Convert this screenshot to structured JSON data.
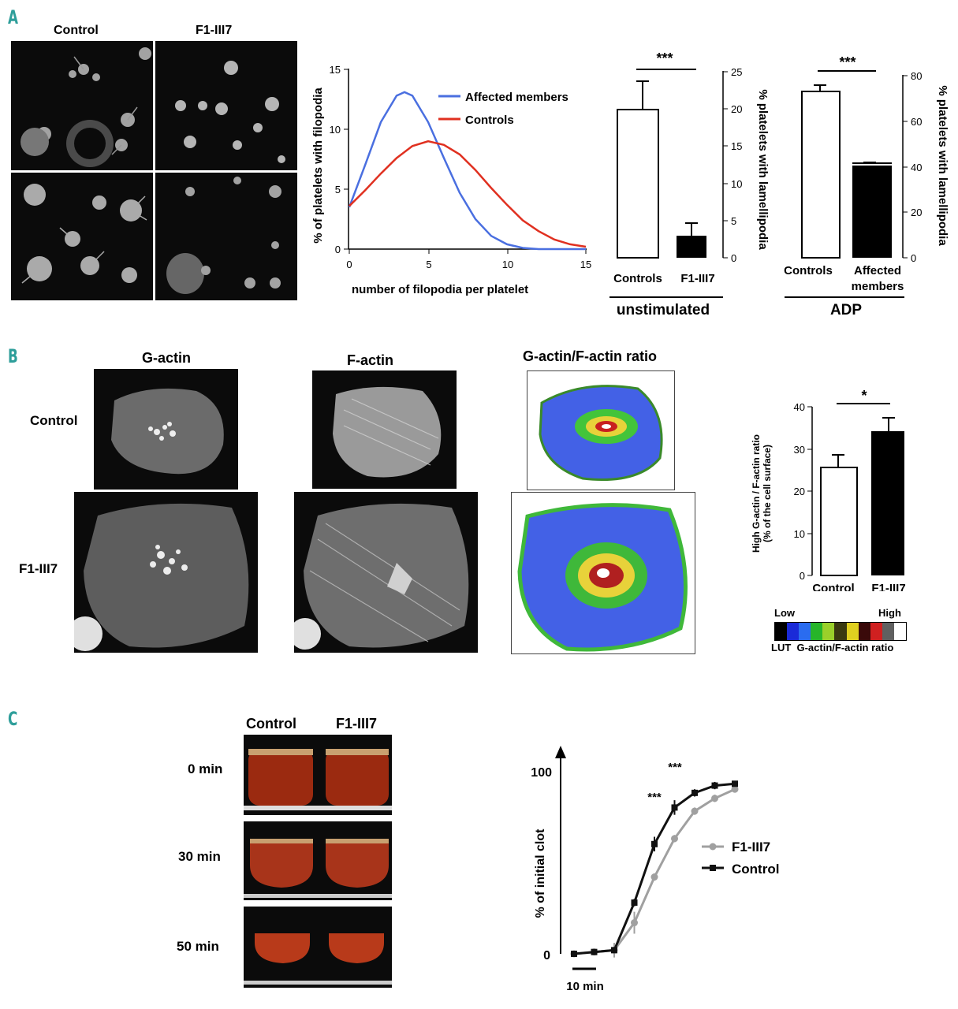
{
  "panels": {
    "a": "A",
    "b": "B",
    "c": "C"
  },
  "panelA": {
    "micro_titles": [
      "Control",
      "F1-III7"
    ],
    "filopodia_chart": {
      "ylabel": "% of platelets with filopodia",
      "xlabel": "number of filopodia per platelet",
      "yticks": [
        "15",
        "10",
        "5",
        "0"
      ],
      "xticks": [
        "0",
        "5",
        "10",
        "15"
      ],
      "legend": [
        "Affected members",
        "Controls"
      ]
    },
    "lamelli1": {
      "sig": "***",
      "ylabel": "% platelets with lamellipodia",
      "yticks": [
        "25",
        "20",
        "15",
        "10",
        "5",
        "0"
      ],
      "cat1": "Controls",
      "cat2": "F1-III7",
      "group": "unstimulated"
    },
    "lamelli2": {
      "sig": "***",
      "ylabel": "% platelets with lamellipodia",
      "yticks": [
        "80",
        "60",
        "40",
        "20",
        "0"
      ],
      "cat1": "Controls",
      "cat2a": "Affected",
      "cat2b": "members",
      "group": "ADP"
    }
  },
  "panelB": {
    "col_titles": [
      "G-actin",
      "F-actin",
      "G-actin/F-actin ratio"
    ],
    "row_labels": [
      "Control",
      "F1-III7"
    ],
    "bar": {
      "sig": "*",
      "ylabel1": "High G-actin / F-actin ratio",
      "ylabel2": "(% of the cell surface)",
      "yticks": [
        "40",
        "30",
        "20",
        "10",
        "0"
      ],
      "cat1": "Control",
      "cat2": "F1-III7"
    },
    "lut": {
      "low": "Low",
      "high": "High",
      "caption": "LUT  G-actin/F-actin ratio"
    }
  },
  "panelC": {
    "col_titles": [
      "Control",
      "F1-III7"
    ],
    "time_labels": [
      "0 min",
      "30 min",
      "50 min"
    ],
    "chart": {
      "ylabel": "% of initial clot",
      "ytop": "100",
      "ybottom": "0",
      "scale_label": "10 min",
      "sig1": "***",
      "sig2": "***",
      "legend": [
        "F1-III7",
        "Control"
      ]
    }
  },
  "chart_data": [
    {
      "type": "line",
      "title": "",
      "xlabel": "number of filopodia per platelet",
      "ylabel": "% of platelets with filopodia",
      "xlim": [
        0,
        15
      ],
      "ylim": [
        0,
        15
      ],
      "series": [
        {
          "name": "Affected members",
          "color": "#4a6fe0",
          "x": [
            0,
            1,
            2,
            3,
            3.5,
            4,
            5,
            6,
            7,
            8,
            9,
            10,
            11,
            12,
            13,
            14,
            15
          ],
          "y": [
            3.5,
            7.0,
            10.6,
            12.8,
            13.1,
            12.8,
            10.6,
            7.6,
            4.7,
            2.5,
            1.1,
            0.4,
            0.1,
            0.0,
            0.0,
            0.0,
            0.0
          ]
        },
        {
          "name": "Controls",
          "color": "#e03020",
          "x": [
            0,
            1,
            2,
            3,
            4,
            5,
            6,
            7,
            8,
            9,
            10,
            11,
            12,
            13,
            14,
            15
          ],
          "y": [
            3.6,
            4.9,
            6.3,
            7.6,
            8.6,
            9.0,
            8.7,
            7.9,
            6.6,
            5.1,
            3.7,
            2.4,
            1.5,
            0.8,
            0.4,
            0.2
          ]
        }
      ]
    },
    {
      "type": "bar",
      "group": "unstimulated",
      "categories": [
        "Controls",
        "F1-III7"
      ],
      "values": [
        20,
        3
      ],
      "errors": [
        4,
        2
      ],
      "ylabel": "% platelets with lamellipodia",
      "ylim": [
        0,
        25
      ]
    },
    {
      "type": "bar",
      "group": "ADP",
      "categories": [
        "Controls",
        "Affected members"
      ],
      "values": [
        73,
        40
      ],
      "errors": [
        2,
        1
      ],
      "ylabel": "% platelets with lamellipodia",
      "ylim": [
        0,
        80
      ]
    },
    {
      "type": "bar",
      "categories": [
        "Control",
        "F1-III7"
      ],
      "values": [
        23,
        34
      ],
      "errors": [
        3,
        3
      ],
      "ylabel": "High G-actin / F-actin ratio (% of the cell surface)",
      "ylim": [
        0,
        40
      ]
    },
    {
      "type": "line",
      "ylabel": "% of initial clot",
      "xlabel": "",
      "ylim": [
        0,
        100
      ],
      "series": [
        {
          "name": "F1-III7",
          "color": "#a0a0a0",
          "x": [
            0,
            5,
            10,
            15,
            20,
            25,
            30,
            35,
            40
          ],
          "y": [
            0,
            1,
            2,
            17,
            42,
            63,
            78,
            85,
            90
          ],
          "err": [
            0,
            1,
            4,
            6,
            2,
            2,
            2,
            2,
            1
          ]
        },
        {
          "name": "Control",
          "color": "#111111",
          "x": [
            0,
            5,
            10,
            15,
            20,
            25,
            30,
            35,
            40
          ],
          "y": [
            0,
            1,
            2,
            28,
            60,
            80,
            88,
            92,
            93
          ],
          "err": [
            0,
            1,
            1,
            2,
            4,
            4,
            2,
            2,
            1
          ]
        }
      ]
    }
  ]
}
